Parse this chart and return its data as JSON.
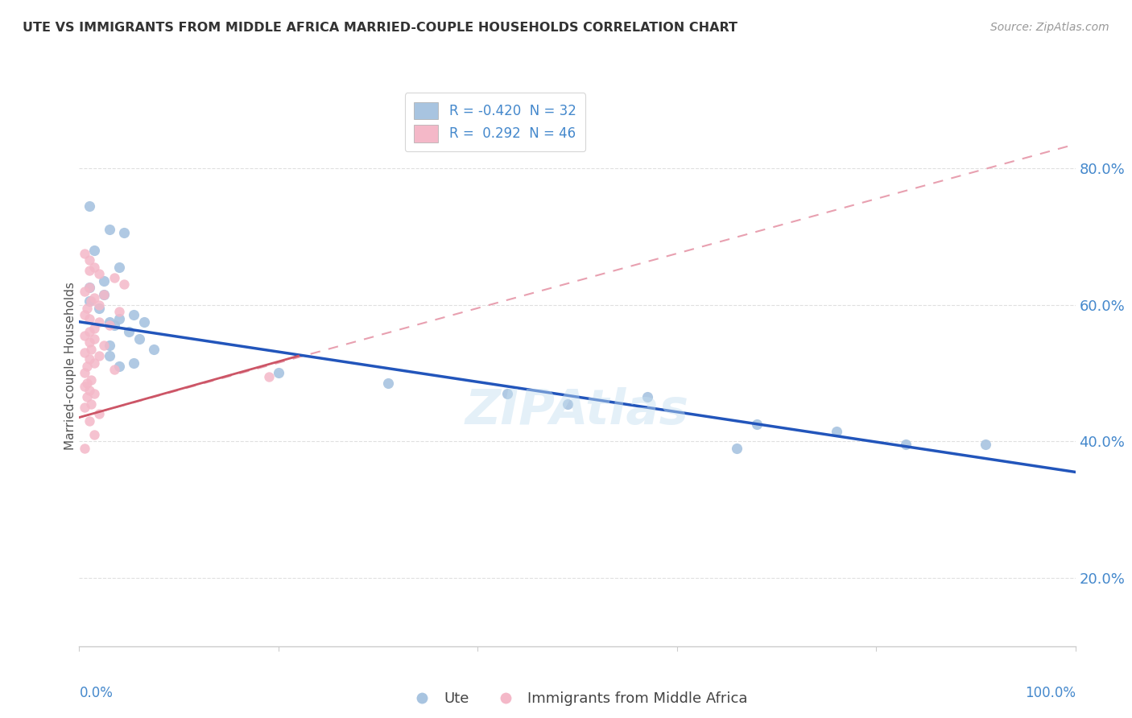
{
  "title": "UTE VS IMMIGRANTS FROM MIDDLE AFRICA MARRIED-COUPLE HOUSEHOLDS CORRELATION CHART",
  "source": "Source: ZipAtlas.com",
  "ylabel": "Married-couple Households",
  "legend_blue_R": "-0.420",
  "legend_blue_N": "32",
  "legend_pink_R": "0.292",
  "legend_pink_N": "46",
  "legend_label_blue": "Ute",
  "legend_label_pink": "Immigrants from Middle Africa",
  "blue_scatter_color": "#a8c4e0",
  "pink_scatter_color": "#f4b8c8",
  "blue_line_color": "#2255bb",
  "pink_line_color": "#cc5566",
  "pink_dash_color": "#e8a0b0",
  "text_color": "#4488cc",
  "title_color": "#333333",
  "source_color": "#999999",
  "background_color": "#ffffff",
  "grid_color": "#e0e0e0",
  "ute_points": [
    [
      1.0,
      74.5
    ],
    [
      3.0,
      71.0
    ],
    [
      4.5,
      70.5
    ],
    [
      1.5,
      68.0
    ],
    [
      4.0,
      65.5
    ],
    [
      2.5,
      63.5
    ],
    [
      1.0,
      62.5
    ],
    [
      2.5,
      61.5
    ],
    [
      1.0,
      60.5
    ],
    [
      2.0,
      59.5
    ],
    [
      5.5,
      58.5
    ],
    [
      4.0,
      58.0
    ],
    [
      3.0,
      57.5
    ],
    [
      6.5,
      57.5
    ],
    [
      3.5,
      57.0
    ],
    [
      5.0,
      56.0
    ],
    [
      6.0,
      55.0
    ],
    [
      3.0,
      54.0
    ],
    [
      7.5,
      53.5
    ],
    [
      3.0,
      52.5
    ],
    [
      5.5,
      51.5
    ],
    [
      4.0,
      51.0
    ],
    [
      20.0,
      50.0
    ],
    [
      31.0,
      48.5
    ],
    [
      43.0,
      47.0
    ],
    [
      57.0,
      46.5
    ],
    [
      49.0,
      45.5
    ],
    [
      68.0,
      42.5
    ],
    [
      76.0,
      41.5
    ],
    [
      66.0,
      39.0
    ],
    [
      83.0,
      39.5
    ],
    [
      91.0,
      39.5
    ]
  ],
  "pink_points": [
    [
      0.5,
      67.5
    ],
    [
      1.0,
      66.5
    ],
    [
      1.5,
      65.5
    ],
    [
      1.0,
      65.0
    ],
    [
      2.0,
      64.5
    ],
    [
      3.5,
      64.0
    ],
    [
      4.5,
      63.0
    ],
    [
      1.0,
      62.5
    ],
    [
      0.5,
      62.0
    ],
    [
      2.5,
      61.5
    ],
    [
      1.5,
      61.0
    ],
    [
      1.2,
      60.5
    ],
    [
      2.0,
      60.0
    ],
    [
      0.8,
      59.5
    ],
    [
      4.0,
      59.0
    ],
    [
      0.5,
      58.5
    ],
    [
      1.0,
      58.0
    ],
    [
      2.0,
      57.5
    ],
    [
      3.0,
      57.0
    ],
    [
      1.5,
      56.5
    ],
    [
      1.0,
      56.0
    ],
    [
      0.5,
      55.5
    ],
    [
      1.5,
      55.0
    ],
    [
      1.0,
      54.5
    ],
    [
      2.5,
      54.0
    ],
    [
      1.2,
      53.5
    ],
    [
      0.5,
      53.0
    ],
    [
      2.0,
      52.5
    ],
    [
      1.0,
      52.0
    ],
    [
      1.5,
      51.5
    ],
    [
      0.8,
      51.0
    ],
    [
      3.5,
      50.5
    ],
    [
      0.5,
      50.0
    ],
    [
      19.0,
      49.5
    ],
    [
      1.2,
      49.0
    ],
    [
      0.8,
      48.5
    ],
    [
      0.5,
      48.0
    ],
    [
      1.0,
      47.5
    ],
    [
      1.5,
      47.0
    ],
    [
      0.8,
      46.5
    ],
    [
      1.2,
      45.5
    ],
    [
      0.5,
      45.0
    ],
    [
      2.0,
      44.0
    ],
    [
      1.0,
      43.0
    ],
    [
      1.5,
      41.0
    ],
    [
      0.5,
      39.0
    ]
  ],
  "xlim": [
    0,
    100
  ],
  "ylim": [
    10,
    92
  ],
  "yticks": [
    20,
    40,
    60,
    80
  ],
  "ytick_labels": [
    "20.0%",
    "40.0%",
    "60.0%",
    "80.0%"
  ],
  "blue_line_x0": 0,
  "blue_line_y0": 57.5,
  "blue_line_x1": 100,
  "blue_line_y1": 35.5,
  "pink_solid_x0": 0,
  "pink_solid_y0": 43.5,
  "pink_solid_x1": 22,
  "pink_solid_y1": 52.5,
  "pink_dash_x0": 0,
  "pink_dash_y0": 43.5,
  "pink_dash_x1": 100,
  "pink_dash_y1": 83.5
}
